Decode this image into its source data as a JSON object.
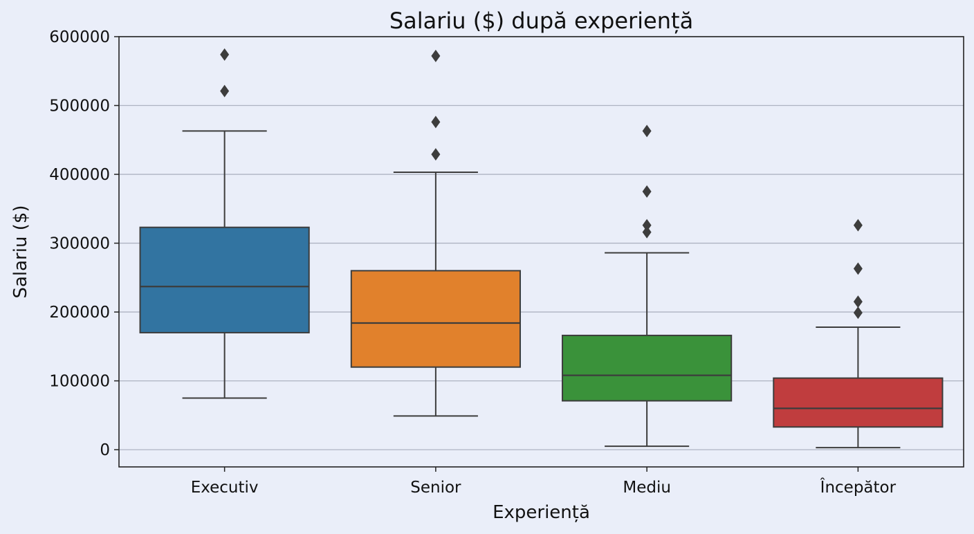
{
  "chart_data": {
    "type": "box",
    "title": "Salariu ($) după experiență",
    "xlabel": "Experiență",
    "ylabel": "Salariu ($)",
    "ylim": [
      -25000,
      600000
    ],
    "yticks": [
      0,
      100000,
      200000,
      300000,
      400000,
      500000,
      600000
    ],
    "ytick_labels": [
      "0",
      "100000",
      "200000",
      "300000",
      "400000",
      "500000",
      "600000"
    ],
    "grid": true,
    "colors": {
      "background": "#eaeef9",
      "plot_area": "#eaeef9",
      "grid": "#aeb3c2",
      "box_edge": "#3c3c3c"
    },
    "categories": [
      "Executiv",
      "Senior",
      "Mediu",
      "Începător"
    ],
    "boxes": [
      {
        "category": "Executiv",
        "color": "#3274a1",
        "whisker_low": 75000,
        "q1": 170000,
        "median": 237000,
        "q3": 323000,
        "whisker_high": 463000,
        "outliers": [
          521000,
          574000
        ]
      },
      {
        "category": "Senior",
        "color": "#e1812c",
        "whisker_low": 49000,
        "q1": 120000,
        "median": 184000,
        "q3": 260000,
        "whisker_high": 403000,
        "outliers": [
          429000,
          476000,
          572000
        ]
      },
      {
        "category": "Mediu",
        "color": "#3a923a",
        "whisker_low": 5000,
        "q1": 71000,
        "median": 108000,
        "q3": 166000,
        "whisker_high": 286000,
        "outliers": [
          316000,
          326000,
          375000,
          463000
        ]
      },
      {
        "category": "Începător",
        "color": "#c03d3e",
        "whisker_low": 3000,
        "q1": 33000,
        "median": 60000,
        "q3": 104000,
        "whisker_high": 178000,
        "outliers": [
          199000,
          215000,
          263000,
          326000
        ]
      }
    ]
  }
}
